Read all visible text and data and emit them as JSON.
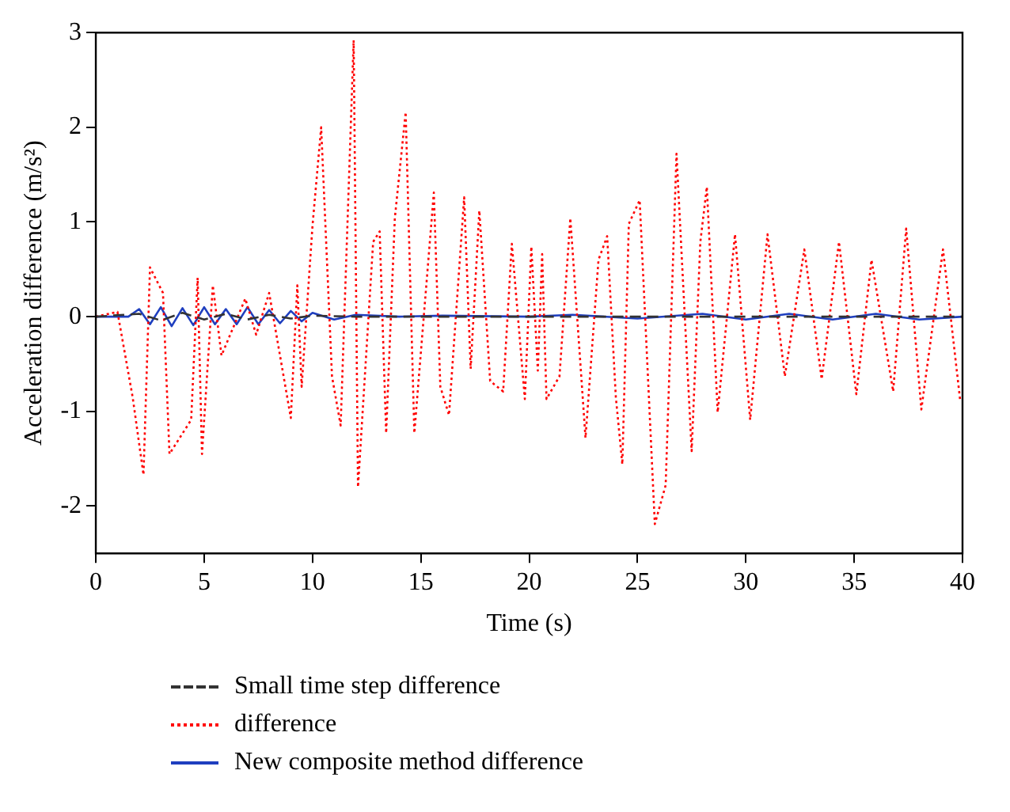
{
  "chart_data": {
    "type": "line",
    "xlabel": "Time (s)",
    "ylabel": "Acceleration difference (m/s²)",
    "xlim": [
      0,
      40
    ],
    "xticks": [
      0,
      5,
      10,
      15,
      20,
      25,
      30,
      35,
      40
    ],
    "ylim": [
      -2.5,
      3
    ],
    "yticks": [
      -2,
      -1,
      0,
      1,
      2,
      3
    ],
    "grid": false,
    "legend": "bottom",
    "marker": "none",
    "series": [
      {
        "name": "Small time step difference",
        "color": "#333333",
        "line_style": "dashed",
        "x": [
          0,
          2,
          3,
          4,
          5,
          6,
          7,
          8,
          9,
          10,
          12,
          15,
          20,
          25,
          30,
          35,
          40
        ],
        "values": [
          0,
          0.03,
          -0.04,
          0.04,
          -0.03,
          0.03,
          -0.03,
          0.02,
          -0.02,
          0.01,
          0,
          0,
          0,
          0,
          0,
          0,
          0
        ]
      },
      {
        "name": "difference",
        "color": "#ff0000",
        "line_style": "dotted",
        "x": [
          0,
          1,
          1.7,
          2.2,
          2.5,
          3.1,
          3.4,
          4.4,
          4.7,
          4.9,
          5.4,
          5.8,
          6.9,
          7.4,
          8.0,
          9.0,
          9.3,
          9.5,
          10.0,
          10.4,
          10.9,
          11.3,
          11.9,
          12.1,
          12.8,
          13.1,
          13.4,
          13.8,
          14.3,
          14.7,
          15.6,
          15.9,
          16.3,
          17.0,
          17.3,
          17.7,
          18.2,
          18.8,
          19.2,
          19.8,
          20.1,
          20.4,
          20.6,
          20.8,
          21.4,
          21.9,
          22.6,
          23.2,
          23.6,
          24.0,
          24.3,
          24.6,
          25.1,
          25.8,
          26.3,
          26.8,
          27.5,
          27.9,
          28.2,
          28.7,
          29.5,
          30.2,
          31.0,
          31.8,
          32.7,
          33.5,
          34.3,
          35.1,
          35.8,
          36.8,
          37.4,
          38.1,
          39.1,
          39.9
        ],
        "values": [
          0,
          0.05,
          -0.85,
          -1.67,
          0.52,
          0.25,
          -1.45,
          -1.09,
          0.41,
          -1.45,
          0.33,
          -0.41,
          0.19,
          -0.19,
          0.25,
          -1.07,
          0.33,
          -0.74,
          0.96,
          2.0,
          -0.63,
          -1.15,
          2.92,
          -1.8,
          0.79,
          0.9,
          -1.23,
          1.04,
          2.16,
          -1.23,
          1.31,
          -0.74,
          -1.04,
          1.26,
          -0.55,
          1.12,
          -0.68,
          -0.79,
          0.77,
          -0.87,
          0.74,
          -0.57,
          0.66,
          -0.87,
          -0.63,
          1.04,
          -1.28,
          0.6,
          0.85,
          -0.85,
          -1.56,
          0.98,
          1.23,
          -2.19,
          -1.78,
          1.72,
          -1.42,
          0.79,
          1.37,
          -1.01,
          0.87,
          -1.09,
          0.87,
          -0.63,
          0.71,
          -0.66,
          0.79,
          -0.82,
          0.6,
          -0.79,
          0.93,
          -0.98,
          0.71,
          -0.9
        ]
      },
      {
        "name": "New composite method difference",
        "color": "#1f3fbf",
        "line_style": "solid",
        "x": [
          0,
          1.5,
          2,
          2.5,
          3,
          3.5,
          4,
          4.5,
          5,
          5.5,
          6,
          6.5,
          7,
          7.5,
          8,
          8.5,
          9,
          9.5,
          10,
          11,
          12,
          14,
          16,
          20,
          22,
          25,
          28,
          30,
          32,
          34,
          36,
          38,
          40
        ],
        "values": [
          0,
          0,
          0.08,
          -0.08,
          0.1,
          -0.1,
          0.09,
          -0.09,
          0.1,
          -0.08,
          0.08,
          -0.08,
          0.1,
          -0.08,
          0.07,
          -0.07,
          0.06,
          -0.05,
          0.04,
          -0.03,
          0.02,
          0,
          0.01,
          0,
          0.02,
          -0.02,
          0.03,
          -0.03,
          0.03,
          -0.03,
          0.03,
          -0.03,
          0
        ]
      }
    ]
  }
}
